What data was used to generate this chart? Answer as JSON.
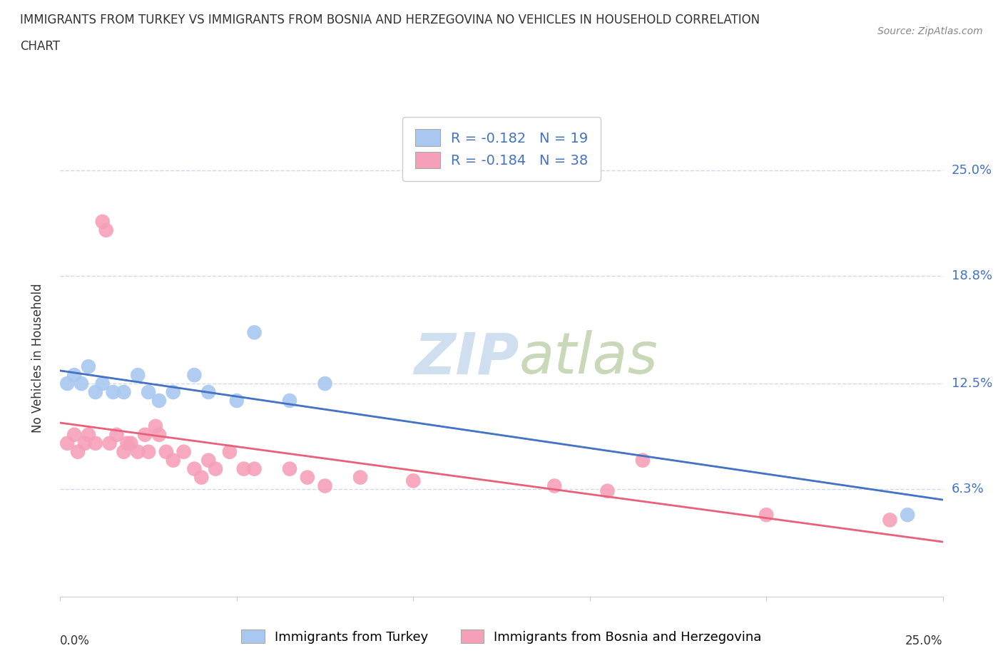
{
  "title_line1": "IMMIGRANTS FROM TURKEY VS IMMIGRANTS FROM BOSNIA AND HERZEGOVINA NO VEHICLES IN HOUSEHOLD CORRELATION",
  "title_line2": "CHART",
  "source": "Source: ZipAtlas.com",
  "ylabel": "No Vehicles in Household",
  "xlim": [
    0,
    0.25
  ],
  "ylim": [
    0,
    0.28
  ],
  "ytick_vals": [
    0.063,
    0.125,
    0.188,
    0.25
  ],
  "ytick_labels": [
    "6.3%",
    "12.5%",
    "18.8%",
    "25.0%"
  ],
  "background_color": "#ffffff",
  "grid_color": "#d0d8e8",
  "turkey_color": "#a8c8f0",
  "bosnia_color": "#f5a0b8",
  "turkey_line_color": "#4472c4",
  "bosnia_line_color": "#e8607a",
  "watermark_color": "#d0dff0",
  "legend_turkey_R": "-0.182",
  "legend_turkey_N": "19",
  "legend_bosnia_R": "-0.184",
  "legend_bosnia_N": "38",
  "legend_label_turkey": "Immigrants from Turkey",
  "legend_label_bosnia": "Immigrants from Bosnia and Herzegovina",
  "turkey_x": [
    0.002,
    0.004,
    0.006,
    0.008,
    0.01,
    0.012,
    0.015,
    0.018,
    0.022,
    0.025,
    0.028,
    0.032,
    0.038,
    0.042,
    0.05,
    0.055,
    0.065,
    0.075,
    0.24
  ],
  "turkey_y": [
    0.125,
    0.13,
    0.125,
    0.135,
    0.12,
    0.125,
    0.12,
    0.12,
    0.13,
    0.12,
    0.115,
    0.12,
    0.13,
    0.12,
    0.115,
    0.155,
    0.115,
    0.125,
    0.048
  ],
  "bosnia_x": [
    0.002,
    0.004,
    0.005,
    0.007,
    0.008,
    0.01,
    0.012,
    0.013,
    0.014,
    0.016,
    0.018,
    0.019,
    0.02,
    0.022,
    0.024,
    0.025,
    0.027,
    0.028,
    0.03,
    0.032,
    0.035,
    0.038,
    0.04,
    0.042,
    0.044,
    0.048,
    0.052,
    0.055,
    0.065,
    0.07,
    0.075,
    0.085,
    0.1,
    0.14,
    0.155,
    0.165,
    0.2,
    0.235
  ],
  "bosnia_y": [
    0.09,
    0.095,
    0.085,
    0.09,
    0.095,
    0.09,
    0.22,
    0.215,
    0.09,
    0.095,
    0.085,
    0.09,
    0.09,
    0.085,
    0.095,
    0.085,
    0.1,
    0.095,
    0.085,
    0.08,
    0.085,
    0.075,
    0.07,
    0.08,
    0.075,
    0.085,
    0.075,
    0.075,
    0.075,
    0.07,
    0.065,
    0.07,
    0.068,
    0.065,
    0.062,
    0.08,
    0.048,
    0.045
  ]
}
